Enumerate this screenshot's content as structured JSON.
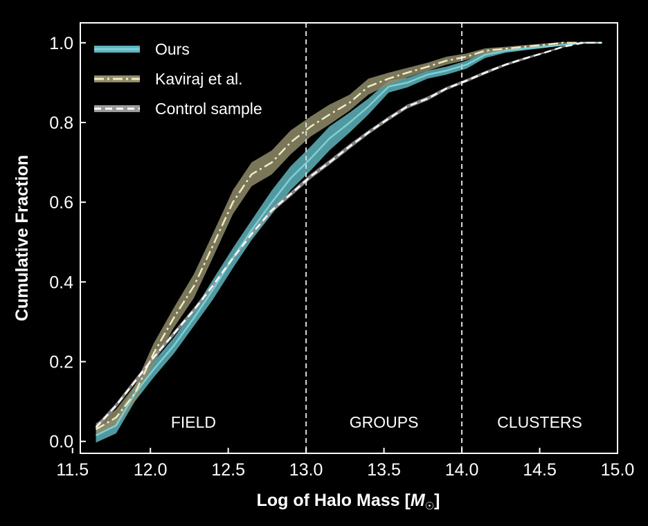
{
  "chart_data": {
    "type": "line",
    "title": "",
    "xlabel": "Log of Halo Mass [",
    "xlabel_symbol": "M",
    "xlabel_suffix": "]",
    "ylabel": "Cumulative Fraction",
    "xlim": [
      11.55,
      15.0
    ],
    "ylim": [
      -0.03,
      1.05
    ],
    "xticks": [
      "11.5",
      "12.0",
      "12.5",
      "13.0",
      "13.5",
      "14.0",
      "14.5",
      "15.0"
    ],
    "xtick_values": [
      11.5,
      12.0,
      12.5,
      13.0,
      13.5,
      14.0,
      14.5,
      15.0
    ],
    "yticks": [
      "0.0",
      "0.2",
      "0.4",
      "0.6",
      "0.8",
      "1.0"
    ],
    "ytick_values": [
      0.0,
      0.2,
      0.4,
      0.6,
      0.8,
      1.0
    ],
    "grid": false,
    "legend_position": "top-left",
    "vlines": [
      13.0,
      14.0
    ],
    "regions": [
      {
        "label": "FIELD",
        "x": 12.25
      },
      {
        "label": "GROUPS",
        "x": 13.5
      },
      {
        "label": "CLUSTERS",
        "x": 14.5
      }
    ],
    "series": [
      {
        "name": "Ours",
        "style": "solid",
        "color": "#7fd0d6",
        "band_color": "#5fb4bc",
        "x": [
          11.65,
          11.78,
          11.9,
          12.02,
          12.15,
          12.28,
          12.4,
          12.53,
          12.65,
          12.78,
          12.9,
          13.03,
          13.15,
          13.28,
          13.4,
          13.53,
          13.65,
          13.78,
          13.9,
          14.03,
          14.15,
          14.28,
          14.4,
          14.53,
          14.65,
          14.78,
          14.9
        ],
        "values": [
          0.015,
          0.04,
          0.12,
          0.18,
          0.24,
          0.31,
          0.38,
          0.46,
          0.53,
          0.6,
          0.66,
          0.71,
          0.76,
          0.8,
          0.84,
          0.89,
          0.9,
          0.92,
          0.93,
          0.945,
          0.97,
          0.98,
          0.985,
          0.99,
          0.995,
          1.0,
          1.0
        ],
        "band": [
          0.018,
          0.02,
          0.02,
          0.02,
          0.02,
          0.02,
          0.025,
          0.025,
          0.025,
          0.03,
          0.03,
          0.03,
          0.03,
          0.025,
          0.02,
          0.015,
          0.012,
          0.01,
          0.01,
          0.01,
          0.008,
          0.005,
          0.004,
          0.003,
          0.002,
          0.0,
          0.0
        ]
      },
      {
        "name": "Kaviraj et al.",
        "style": "dashdot",
        "color": "#f0ecc4",
        "band_color": "#8f8b6a",
        "x": [
          11.65,
          11.78,
          11.9,
          12.02,
          12.15,
          12.28,
          12.4,
          12.53,
          12.65,
          12.78,
          12.9,
          13.03,
          13.15,
          13.28,
          13.4,
          13.53,
          13.65,
          13.78,
          13.9,
          14.03,
          14.15,
          14.28,
          14.4,
          14.53,
          14.65,
          14.78,
          14.9
        ],
        "values": [
          0.03,
          0.06,
          0.12,
          0.22,
          0.31,
          0.39,
          0.49,
          0.6,
          0.67,
          0.7,
          0.75,
          0.79,
          0.82,
          0.85,
          0.89,
          0.91,
          0.925,
          0.94,
          0.955,
          0.965,
          0.98,
          0.985,
          0.99,
          0.995,
          1.0,
          1.0,
          1.0
        ],
        "band": [
          0.015,
          0.02,
          0.02,
          0.025,
          0.025,
          0.03,
          0.03,
          0.03,
          0.03,
          0.03,
          0.03,
          0.025,
          0.025,
          0.02,
          0.02,
          0.015,
          0.012,
          0.01,
          0.01,
          0.008,
          0.006,
          0.005,
          0.004,
          0.003,
          0.002,
          0.0,
          0.0
        ]
      },
      {
        "name": "Control sample",
        "style": "dashed",
        "color": "#ffffff",
        "band_color": "#9a9a9a",
        "x": [
          11.65,
          11.78,
          11.9,
          12.02,
          12.15,
          12.28,
          12.4,
          12.53,
          12.65,
          12.78,
          12.9,
          13.03,
          13.15,
          13.28,
          13.4,
          13.53,
          13.65,
          13.78,
          13.9,
          14.03,
          14.15,
          14.28,
          14.4,
          14.53,
          14.65,
          14.78,
          14.9
        ],
        "values": [
          0.035,
          0.09,
          0.15,
          0.21,
          0.27,
          0.33,
          0.39,
          0.46,
          0.52,
          0.58,
          0.62,
          0.665,
          0.7,
          0.74,
          0.775,
          0.81,
          0.84,
          0.86,
          0.885,
          0.905,
          0.925,
          0.945,
          0.96,
          0.975,
          0.99,
          1.0,
          1.0
        ],
        "band": [
          0.005,
          0.006,
          0.006,
          0.006,
          0.006,
          0.006,
          0.006,
          0.006,
          0.006,
          0.006,
          0.006,
          0.006,
          0.006,
          0.006,
          0.005,
          0.005,
          0.005,
          0.005,
          0.004,
          0.004,
          0.004,
          0.003,
          0.003,
          0.002,
          0.002,
          0.0,
          0.0
        ]
      }
    ]
  }
}
